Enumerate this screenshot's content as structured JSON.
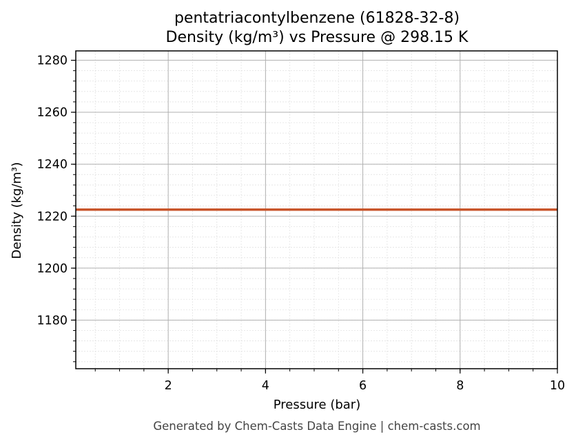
{
  "chart_data": {
    "type": "line",
    "title": "pentatriacontylbenzene (61828-32-8)",
    "subtitle": "Density (kg/m³) vs Pressure @ 298.15 K",
    "xlabel": "Pressure (bar)",
    "ylabel": "Density (kg/m³)",
    "xlim": [
      0.1,
      10
    ],
    "ylim": [
      1161.3,
      1283.6
    ],
    "x_ticks": [
      2,
      4,
      6,
      8,
      10
    ],
    "y_ticks": [
      1180,
      1200,
      1220,
      1240,
      1260,
      1280
    ],
    "grid": true,
    "minor_grid": true,
    "line_color": "#c8552b",
    "series": [
      {
        "x": [
          0.1,
          1,
          2,
          3,
          4,
          5,
          6,
          7,
          8,
          9,
          10
        ],
        "y": [
          1222.5,
          1222.5,
          1222.5,
          1222.5,
          1222.5,
          1222.5,
          1222.5,
          1222.5,
          1222.5,
          1222.5,
          1222.5
        ]
      }
    ]
  },
  "footer": "Generated by Chem-Casts Data Engine | chem-casts.com"
}
